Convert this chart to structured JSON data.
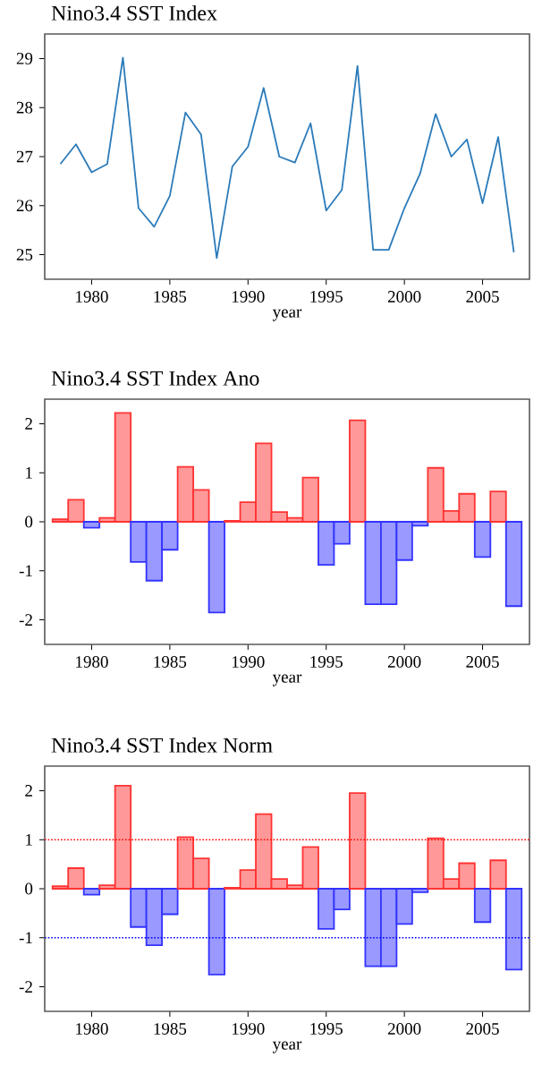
{
  "chart_data": [
    {
      "type": "line",
      "title": "Nino3.4 SST Index",
      "xlabel": "year",
      "x": [
        1978,
        1979,
        1980,
        1981,
        1982,
        1983,
        1984,
        1985,
        1986,
        1987,
        1988,
        1989,
        1990,
        1991,
        1992,
        1993,
        1994,
        1995,
        1996,
        1997,
        1998,
        1999,
        2000,
        2001,
        2002,
        2003,
        2004,
        2005,
        2006,
        2007
      ],
      "series": [
        {
          "color": "#2b7bba",
          "values": [
            26.85,
            27.25,
            26.68,
            26.85,
            29.02,
            25.95,
            25.57,
            26.2,
            27.9,
            27.45,
            24.93,
            26.8,
            27.2,
            28.4,
            27.0,
            26.88,
            27.68,
            25.9,
            26.32,
            28.85,
            25.1,
            25.1,
            25.95,
            26.65,
            27.87,
            27.0,
            27.35,
            26.05,
            27.4,
            25.05
          ]
        }
      ],
      "xlim": [
        1977,
        2008
      ],
      "ylim": [
        24.5,
        29.5
      ],
      "xticks": [
        1980,
        1985,
        1990,
        1995,
        2000,
        2005
      ],
      "yticks": [
        25,
        26,
        27,
        28,
        29
      ]
    },
    {
      "type": "bar",
      "title": "Nino3.4 SST Index Ano",
      "xlabel": "year",
      "x": [
        1978,
        1979,
        1980,
        1981,
        1982,
        1983,
        1984,
        1985,
        1986,
        1987,
        1988,
        1989,
        1990,
        1991,
        1992,
        1993,
        1994,
        1995,
        1996,
        1997,
        1998,
        1999,
        2000,
        2001,
        2002,
        2003,
        2004,
        2005,
        2006,
        2007
      ],
      "values": [
        0.05,
        0.45,
        -0.12,
        0.08,
        2.22,
        -0.82,
        -1.2,
        -0.57,
        1.12,
        0.65,
        -1.85,
        0.02,
        0.4,
        1.6,
        0.2,
        0.08,
        0.9,
        -0.88,
        -0.45,
        2.07,
        -1.68,
        -1.68,
        -0.78,
        -0.08,
        1.1,
        0.22,
        0.57,
        -0.72,
        0.62,
        -1.72
      ],
      "colors": [
        "#ff9999",
        "#ff9999",
        "#9999ff",
        "#ff9999",
        "#ff9999",
        "#9999ff",
        "#9999ff",
        "#9999ff",
        "#ff9999",
        "#ff9999",
        "#9999ff",
        "#ff9999",
        "#ff9999",
        "#ff9999",
        "#ff9999",
        "#ff9999",
        "#ff9999",
        "#9999ff",
        "#9999ff",
        "#ff9999",
        "#9999ff",
        "#9999ff",
        "#9999ff",
        "#9999ff",
        "#ff9999",
        "#ff9999",
        "#ff9999",
        "#9999ff",
        "#ff9999",
        "#9999ff"
      ],
      "xlim": [
        1977,
        2008
      ],
      "ylim": [
        -2.5,
        2.5
      ],
      "xticks": [
        1980,
        1985,
        1990,
        1995,
        2000,
        2005
      ],
      "yticks": [
        -2,
        -1,
        0,
        1,
        2
      ]
    },
    {
      "type": "bar",
      "title": "Nino3.4 SST Index Norm",
      "xlabel": "year",
      "x": [
        1978,
        1979,
        1980,
        1981,
        1982,
        1983,
        1984,
        1985,
        1986,
        1987,
        1988,
        1989,
        1990,
        1991,
        1992,
        1993,
        1994,
        1995,
        1996,
        1997,
        1998,
        1999,
        2000,
        2001,
        2002,
        2003,
        2004,
        2005,
        2006,
        2007
      ],
      "values": [
        0.05,
        0.42,
        -0.12,
        0.07,
        2.1,
        -0.78,
        -1.15,
        -0.52,
        1.05,
        0.62,
        -1.75,
        0.02,
        0.38,
        1.52,
        0.2,
        0.07,
        0.85,
        -0.82,
        -0.42,
        1.95,
        -1.58,
        -1.58,
        -0.72,
        -0.07,
        1.03,
        0.2,
        0.52,
        -0.68,
        0.58,
        -1.65
      ],
      "colors": [
        "#ff9999",
        "#ff9999",
        "#9999ff",
        "#ff9999",
        "#ff9999",
        "#9999ff",
        "#9999ff",
        "#9999ff",
        "#ff9999",
        "#ff9999",
        "#9999ff",
        "#ff9999",
        "#ff9999",
        "#ff9999",
        "#ff9999",
        "#ff9999",
        "#ff9999",
        "#9999ff",
        "#9999ff",
        "#ff9999",
        "#9999ff",
        "#9999ff",
        "#9999ff",
        "#9999ff",
        "#ff9999",
        "#ff9999",
        "#ff9999",
        "#9999ff",
        "#ff9999",
        "#9999ff"
      ],
      "ref_lines": [
        {
          "axis": "y",
          "value": 1,
          "color": "#ff0000",
          "line_style": "dotted"
        },
        {
          "axis": "y",
          "value": -1,
          "color": "#0000ff",
          "line_style": "dotted"
        }
      ],
      "xlim": [
        1977,
        2008
      ],
      "ylim": [
        -2.5,
        2.5
      ],
      "xticks": [
        1980,
        1985,
        1990,
        1995,
        2000,
        2005
      ],
      "yticks": [
        -2,
        -1,
        0,
        1,
        2
      ]
    }
  ]
}
